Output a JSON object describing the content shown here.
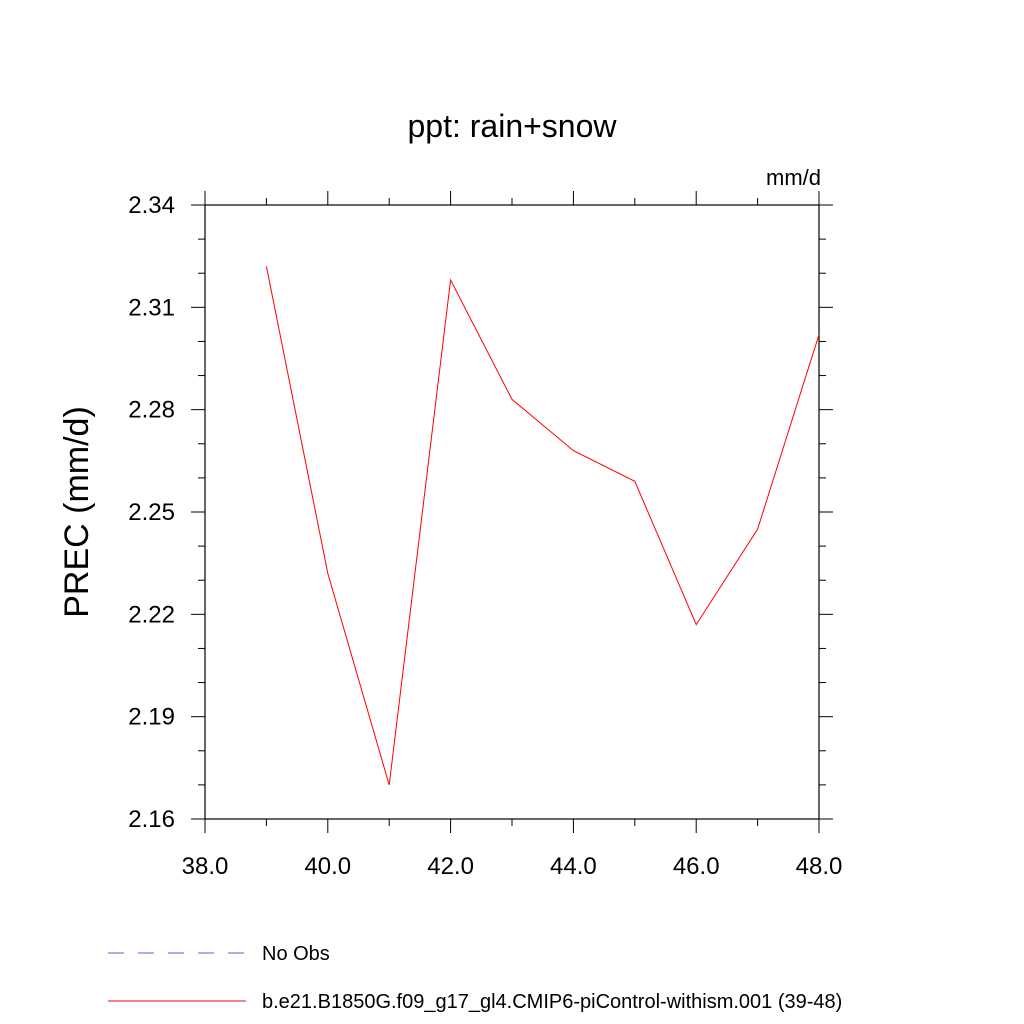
{
  "chart_data": {
    "type": "line",
    "title": "ppt: rain+snow",
    "units_label": "mm/d",
    "ylabel": "PREC  (mm/d)",
    "xlabel": "",
    "xlim": [
      38,
      48
    ],
    "ylim": [
      2.16,
      2.34
    ],
    "x_ticks": [
      "38.0",
      "40.0",
      "42.0",
      "44.0",
      "46.0",
      "48.0"
    ],
    "y_ticks": [
      "2.16",
      "2.19",
      "2.22",
      "2.25",
      "2.28",
      "2.31",
      "2.34"
    ],
    "grid": false,
    "legend_placement": "bottom-left",
    "series": [
      {
        "name": "No Obs",
        "color": "#6a5acd",
        "style": "dashed",
        "x": [],
        "y": []
      },
      {
        "name": "b.e21.B1850G.f09_g17_gl4.CMIP6-piControl-withism.001 (39-48)",
        "color": "#ff0000",
        "style": "solid",
        "x": [
          39,
          40,
          41,
          42,
          43,
          44,
          45,
          46,
          47,
          48
        ],
        "y": [
          2.322,
          2.232,
          2.17,
          2.318,
          2.283,
          2.268,
          2.259,
          2.217,
          2.245,
          2.302
        ]
      }
    ]
  }
}
